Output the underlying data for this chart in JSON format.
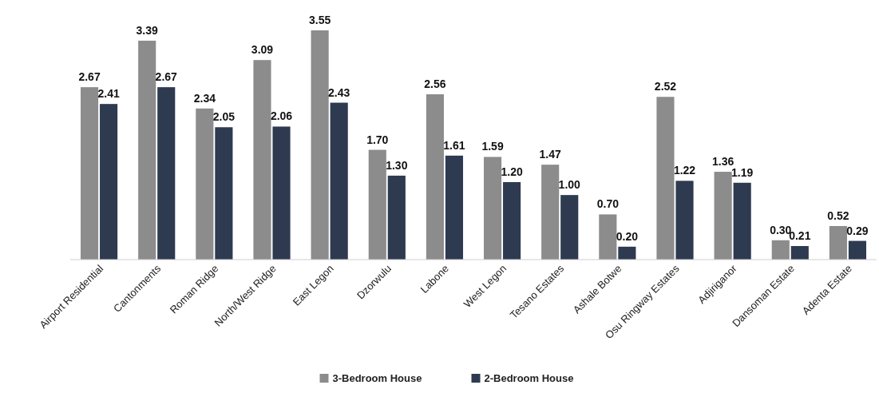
{
  "chart_data": {
    "type": "bar",
    "categories": [
      "Airport Residential",
      "Cantonments",
      "Roman Ridge",
      "North/West Ridge",
      "East Legon",
      "Dzorwulu",
      "Labone",
      "West Legon",
      "Tesano Estates",
      "Ashale Botwe",
      "Osu Ringway Estates",
      "Adjiriganor",
      "Dansoman Estate",
      "Adenta Estate"
    ],
    "series": [
      {
        "name": "3-Bedroom House",
        "color": "#8c8c8c",
        "values": [
          2.67,
          3.39,
          2.34,
          3.09,
          3.55,
          1.7,
          2.56,
          1.59,
          1.47,
          0.7,
          2.52,
          1.36,
          0.3,
          0.52
        ],
        "value_labels": [
          "2.67",
          "3.39",
          "2.34",
          "3.09",
          "3.55",
          "1.70",
          "2.56",
          "1.59",
          "1.47",
          "0.70",
          "2.52",
          "1.36",
          "0.30",
          "0.52"
        ]
      },
      {
        "name": "2-Bedroom House",
        "color": "#2e3a50",
        "values": [
          2.41,
          2.67,
          2.05,
          2.06,
          2.43,
          1.3,
          1.61,
          1.2,
          1.0,
          0.2,
          1.22,
          1.19,
          0.21,
          0.29
        ],
        "value_labels": [
          "2.41",
          "2.67",
          "2.05",
          "2.06",
          "2.43",
          "1.30",
          "1.61",
          "1.20",
          "1.00",
          "0.20",
          "1.22",
          "1.19",
          "0.21",
          "0.29"
        ]
      }
    ],
    "legend": "bottom"
  }
}
